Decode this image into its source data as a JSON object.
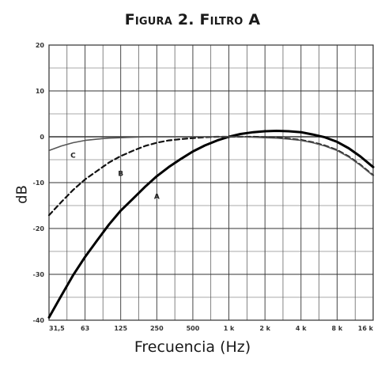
{
  "chart_data": {
    "type": "line",
    "title": "Figura 2. Filtro A",
    "xlabel": "Frecuencia (Hz)",
    "ylabel": "dB",
    "x_scale": "log",
    "x_ticks": [
      "31,5",
      "63",
      "125",
      "250",
      "500",
      "1 k",
      "2 k",
      "4 k",
      "8 k",
      "16 k"
    ],
    "x_tick_values": [
      31.5,
      63,
      125,
      250,
      500,
      1000,
      2000,
      4000,
      8000,
      16000
    ],
    "y_ticks": [
      "20",
      "10",
      "0",
      "-10",
      "-20",
      "-30",
      "-40"
    ],
    "ylim": [
      -40,
      20
    ],
    "xlim": [
      31.5,
      16000
    ],
    "grid": true,
    "series": [
      {
        "name": "A",
        "style": "solid-thick",
        "x": [
          31.5,
          40,
          50,
          63,
          80,
          100,
          125,
          160,
          200,
          250,
          315,
          400,
          500,
          630,
          800,
          1000,
          1250,
          1600,
          2000,
          2500,
          3150,
          4000,
          5000,
          6300,
          8000,
          10000,
          12500,
          16000
        ],
        "y": [
          -39.4,
          -34.6,
          -30.2,
          -26.2,
          -22.5,
          -19.1,
          -16.1,
          -13.4,
          -10.9,
          -8.6,
          -6.6,
          -4.8,
          -3.2,
          -1.9,
          -0.8,
          0,
          0.6,
          1.0,
          1.2,
          1.3,
          1.2,
          1.0,
          0.5,
          -0.1,
          -1.1,
          -2.5,
          -4.3,
          -6.6
        ]
      },
      {
        "name": "B",
        "style": "dashed",
        "x": [
          31.5,
          40,
          50,
          63,
          80,
          100,
          125,
          160,
          200,
          250,
          315,
          400,
          500,
          630,
          800,
          1000,
          1250,
          1600,
          2000,
          2500,
          3150,
          4000,
          5000,
          6300,
          8000,
          10000,
          12500,
          16000
        ],
        "y": [
          -17.1,
          -14.2,
          -11.6,
          -9.3,
          -7.4,
          -5.6,
          -4.2,
          -3.0,
          -2.0,
          -1.3,
          -0.8,
          -0.5,
          -0.3,
          -0.1,
          0,
          0,
          0,
          0,
          -0.1,
          -0.2,
          -0.4,
          -0.7,
          -1.2,
          -1.9,
          -2.9,
          -4.3,
          -6.1,
          -8.4
        ]
      },
      {
        "name": "C",
        "style": "solid-thin",
        "x": [
          31.5,
          40,
          50,
          63,
          80,
          100,
          125,
          160,
          200,
          250,
          315,
          400,
          500,
          630,
          800,
          1000,
          1250,
          1600,
          2000,
          2500,
          3150,
          4000,
          5000,
          6300,
          8000,
          10000,
          12500,
          16000
        ],
        "y": [
          -3.0,
          -2.0,
          -1.3,
          -0.8,
          -0.5,
          -0.3,
          -0.2,
          -0.1,
          0,
          0,
          0,
          0,
          0,
          0,
          0,
          0,
          0,
          -0.1,
          -0.2,
          -0.3,
          -0.5,
          -0.8,
          -1.3,
          -2.0,
          -3.0,
          -4.4,
          -6.2,
          -8.5
        ]
      }
    ]
  }
}
